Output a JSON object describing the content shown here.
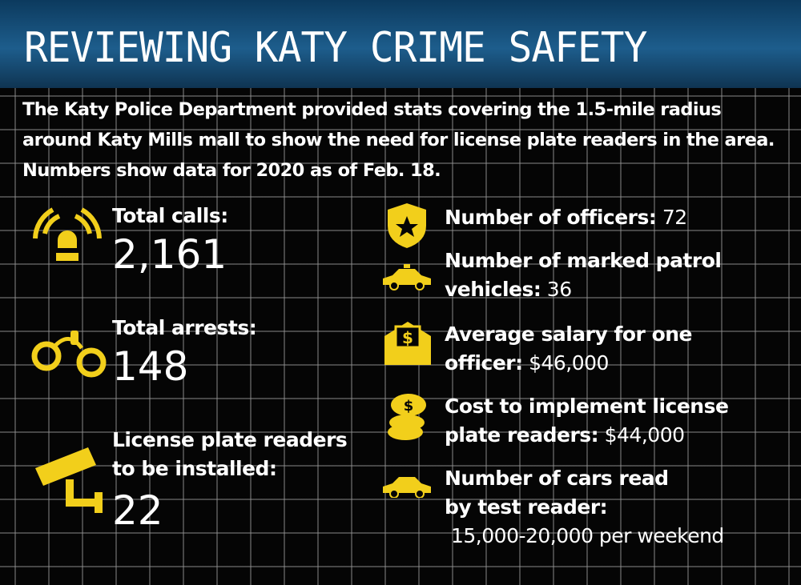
{
  "header": {
    "title": "REVIEWING KATY CRIME SAFETY"
  },
  "intro": "The Katy Police Department provided stats covering the 1.5-mile radius around Katy Mills mall to show the need for license plate readers in the area. Numbers show data for 2020 as of Feb. 18.",
  "left_stats": [
    {
      "label": "Total calls:",
      "value": "2,161"
    },
    {
      "label": "Total arrests:",
      "value": "148"
    },
    {
      "label": "License plate readers to be installed:",
      "value": "22"
    }
  ],
  "right_stats": [
    {
      "label": "Number of officers:",
      "value": "72"
    },
    {
      "label": "Number of marked patrol vehicles:",
      "value": "36"
    },
    {
      "label": "Average salary for one officer:",
      "value": "$46,000"
    },
    {
      "label": "Cost to implement license plate readers:",
      "value": "$44,000"
    },
    {
      "label": "Number of cars read by test reader:",
      "value": "15,000-20,000 per weekend"
    }
  ]
}
